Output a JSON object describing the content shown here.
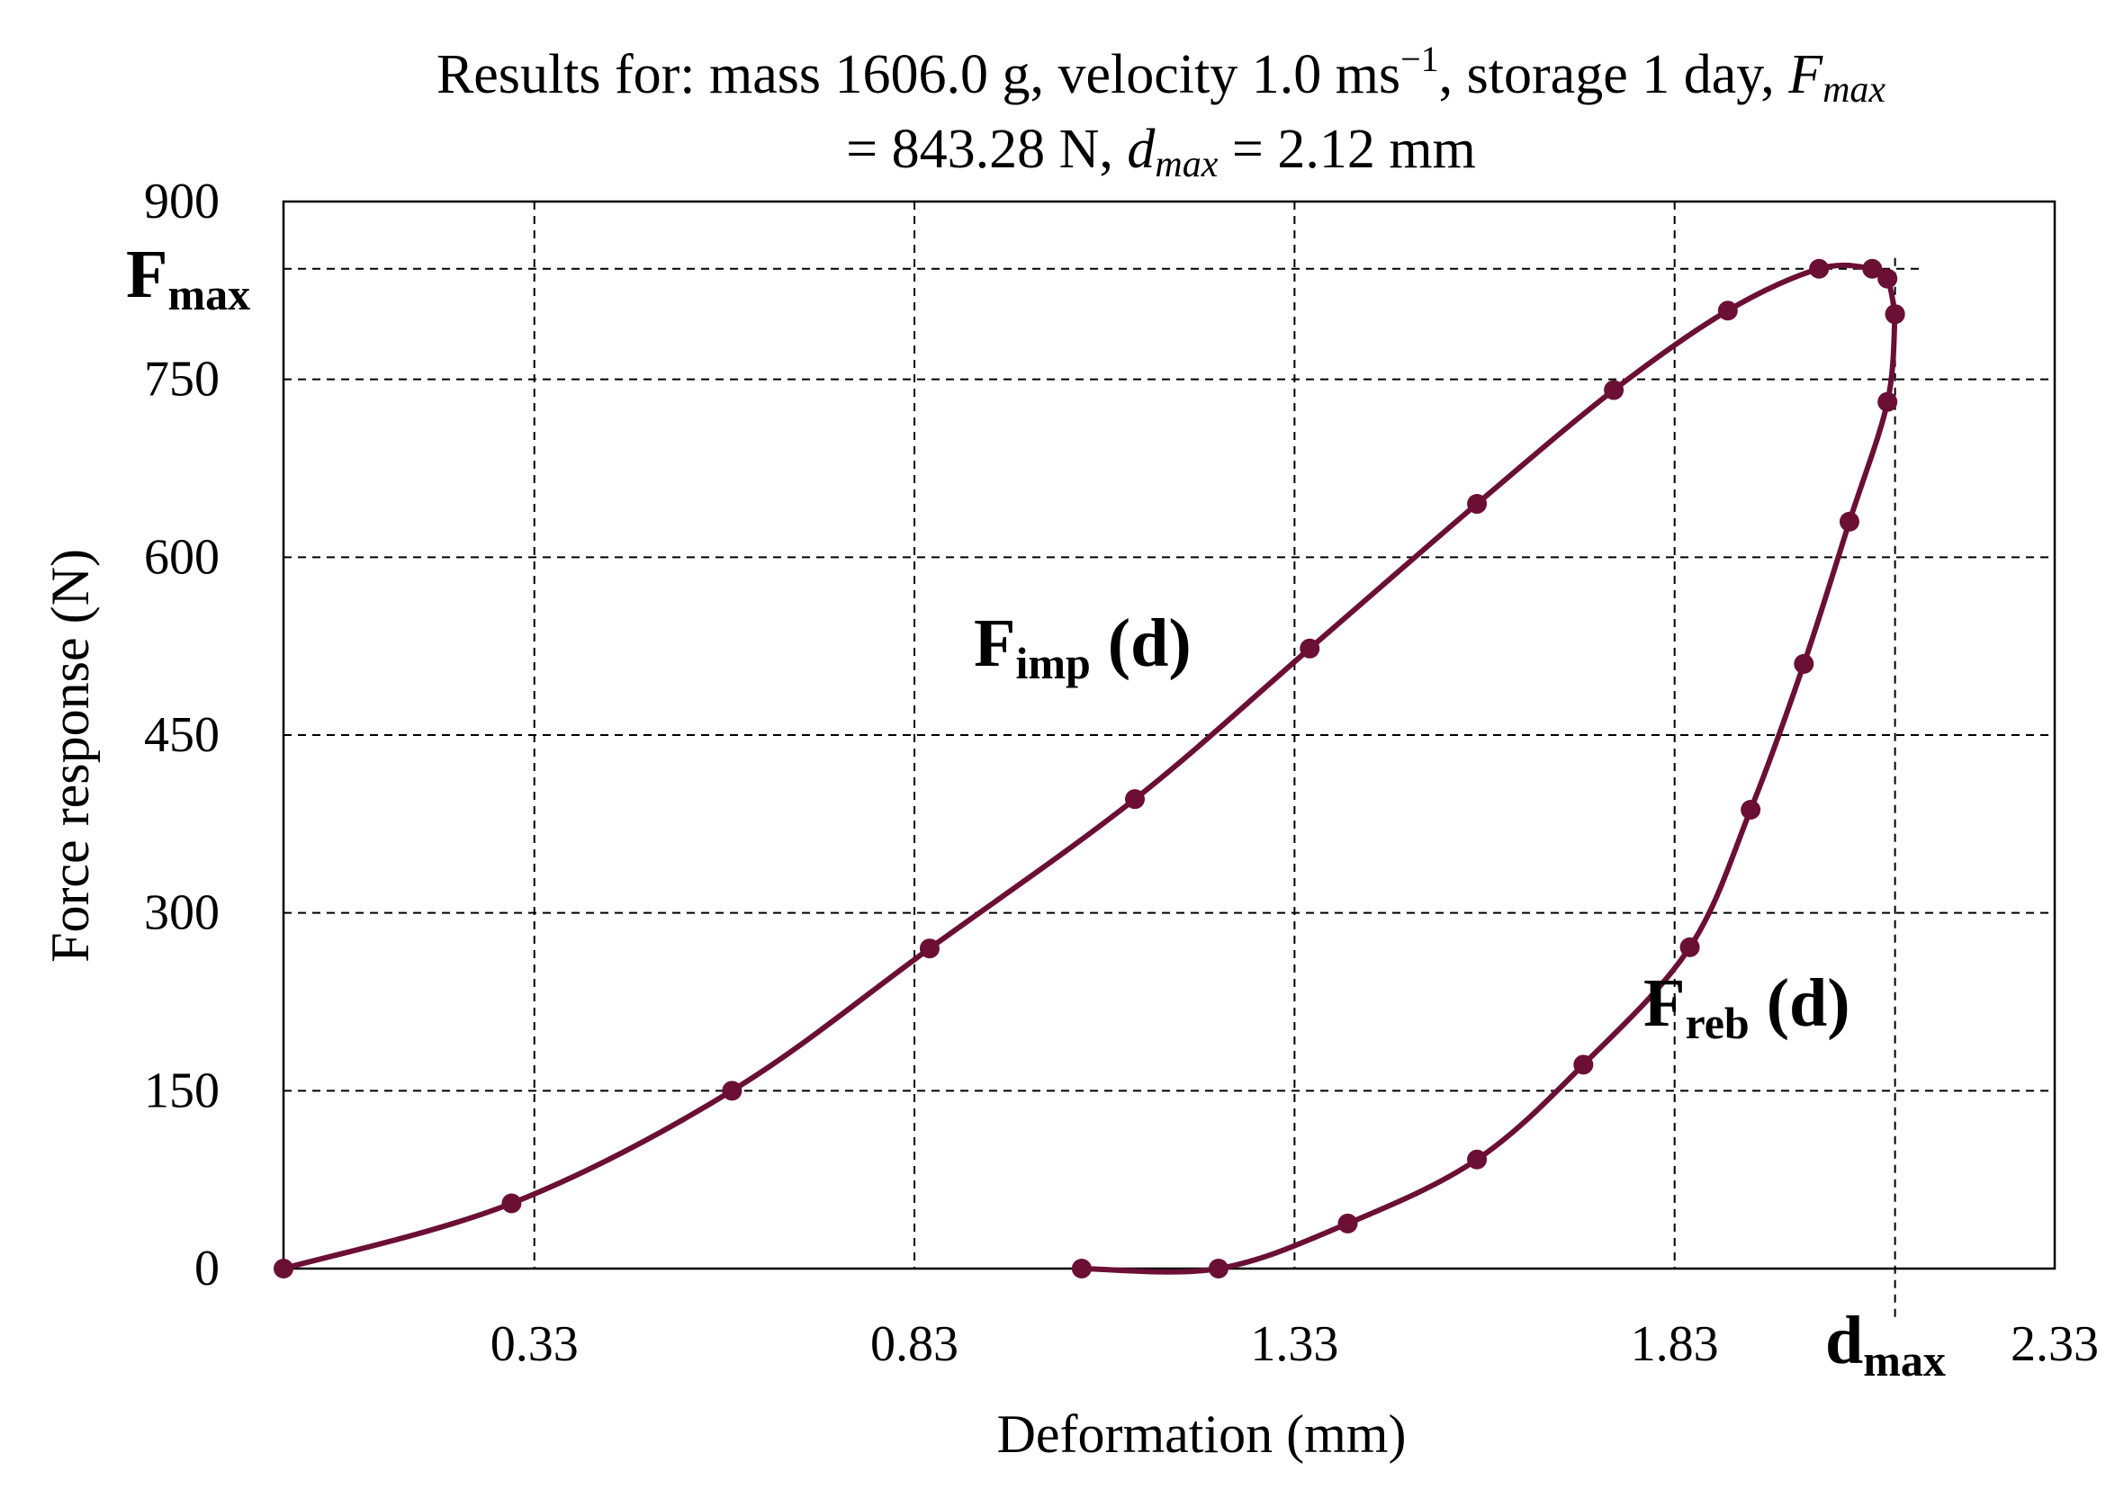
{
  "chart_data": {
    "type": "line",
    "title": {
      "line1_prefix": "Results for: mass 1606.0 g, velocity 1.0 ms",
      "line1_exp": "−1",
      "line1_mid": ", storage 1 day, ",
      "fmax_symbol": "F",
      "fmax_subscript": "max",
      "line2_prefix": "= 843.28 N, ",
      "dmax_symbol": "d",
      "dmax_subscript": "max",
      "line2_suffix": " = 2.12 mm"
    },
    "xlabel": "Deformation (mm)",
    "ylabel": "Force response (N)",
    "xlim": [
      0,
      2.33
    ],
    "ylim": [
      0,
      900
    ],
    "xticks": [
      0.33,
      0.83,
      1.33,
      1.83,
      2.33
    ],
    "xtick_labels": [
      "0.33",
      "0.83",
      "1.33",
      "1.83",
      "2.33"
    ],
    "yticks": [
      0,
      150,
      300,
      450,
      600,
      750,
      900
    ],
    "ytick_labels": [
      "0",
      "150",
      "300",
      "450",
      "600",
      "750",
      "900"
    ],
    "grid": true,
    "fmax": 843.28,
    "dmax": 2.12,
    "fmax_label": {
      "main": "F",
      "sub": "max"
    },
    "dmax_label": {
      "main": "d",
      "sub": "max"
    },
    "colors": {
      "series": "#6b0f35"
    },
    "series": [
      {
        "name": "impact",
        "label_main": "F",
        "label_sub": "imp",
        "label_suffix": " (d)",
        "x": [
          0.0,
          0.3,
          0.59,
          0.85,
          1.12,
          1.35,
          1.57,
          1.75,
          1.9,
          2.02,
          2.09,
          2.11,
          2.12
        ],
        "y": [
          0,
          55,
          150,
          270,
          396,
          523,
          645,
          741,
          808,
          843.28,
          843.28,
          835,
          805
        ]
      },
      {
        "name": "rebound",
        "label_main": "F",
        "label_sub": "reb",
        "label_suffix": " (d)",
        "x": [
          2.12,
          2.11,
          2.06,
          2.0,
          1.93,
          1.85,
          1.71,
          1.57,
          1.4,
          1.23,
          1.05
        ],
        "y": [
          805,
          731,
          630,
          510,
          387,
          271,
          172,
          92,
          38,
          0,
          0
        ]
      }
    ]
  }
}
